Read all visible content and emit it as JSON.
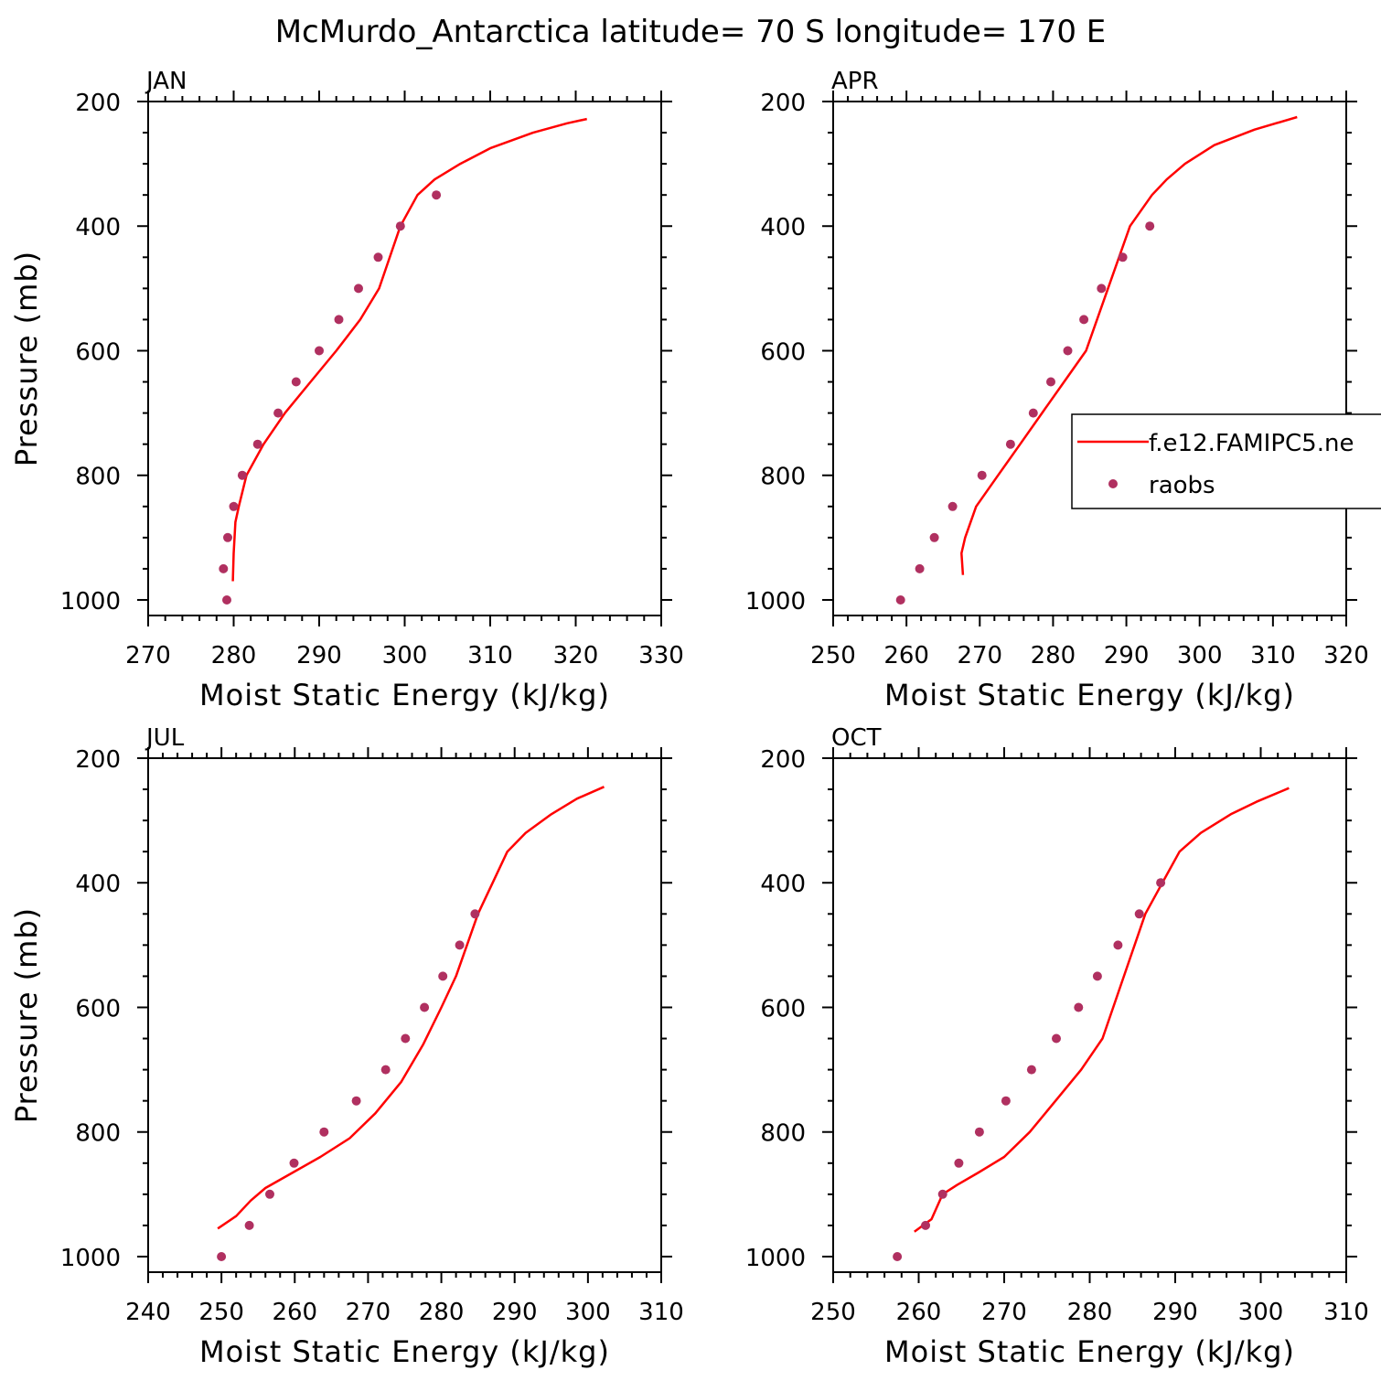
{
  "figure": {
    "title": "McMurdo_Antarctica  latitude= 70 S longitude= 170 E"
  },
  "legend": {
    "model_label": "f.e12.FAMIPC5.ne",
    "obs_label": "raobs"
  },
  "colors": {
    "model_line": "#ff0000",
    "obs_marker": "#b03060",
    "axes": "#000000",
    "background": "#ffffff"
  },
  "chart_data": [
    {
      "type": "line",
      "panel": "JAN",
      "xlabel": "Moist Static Energy (kJ/kg)",
      "ylabel": "Pressure (mb)",
      "xlim": [
        270,
        330
      ],
      "ylim": [
        1025,
        200
      ],
      "xticks": [
        270,
        280,
        290,
        300,
        310,
        320,
        330
      ],
      "yticks": [
        200,
        400,
        600,
        800,
        1000
      ],
      "series": [
        {
          "kind": "line",
          "x": [
            279.9,
            280.0,
            280.2,
            280.6,
            281.5,
            283.5,
            286.0,
            289.0,
            292.0,
            294.8,
            297.0,
            299.5,
            301.5,
            303.5,
            306.5,
            310.0,
            315.0,
            319.0,
            321.3
          ],
          "y": [
            970,
            925,
            875,
            850,
            800,
            750,
            700,
            650,
            600,
            550,
            500,
            400,
            350,
            325,
            300,
            275,
            250,
            235,
            228
          ]
        },
        {
          "kind": "scatter",
          "x": [
            279.2,
            278.8,
            279.3,
            280.0,
            281.0,
            282.8,
            285.2,
            287.3,
            290.0,
            292.3,
            294.6,
            296.9,
            299.5,
            303.7
          ],
          "y": [
            1000,
            950,
            900,
            850,
            800,
            750,
            700,
            650,
            600,
            550,
            500,
            450,
            400,
            350
          ]
        }
      ]
    },
    {
      "type": "line",
      "panel": "APR",
      "xlabel": "Moist Static Energy (kJ/kg)",
      "ylabel": "",
      "xlim": [
        250,
        320
      ],
      "ylim": [
        1025,
        200
      ],
      "xticks": [
        250,
        260,
        270,
        280,
        290,
        300,
        310,
        320
      ],
      "yticks": [
        200,
        400,
        600,
        800,
        1000
      ],
      "series": [
        {
          "kind": "line",
          "x": [
            267.7,
            267.5,
            268.0,
            269.5,
            272.5,
            275.5,
            278.5,
            281.5,
            284.5,
            287.5,
            290.5,
            293.5,
            295.5,
            298.0,
            302.0,
            307.5,
            313.3
          ],
          "y": [
            960,
            925,
            900,
            850,
            800,
            750,
            700,
            650,
            600,
            500,
            400,
            350,
            325,
            300,
            270,
            245,
            225
          ]
        },
        {
          "kind": "scatter",
          "x": [
            259.2,
            261.8,
            263.8,
            266.3,
            270.3,
            274.2,
            277.3,
            279.7,
            282.0,
            284.2,
            286.6,
            289.5,
            293.2
          ],
          "y": [
            1000,
            950,
            900,
            850,
            800,
            750,
            700,
            650,
            600,
            550,
            500,
            450,
            400
          ]
        }
      ]
    },
    {
      "type": "line",
      "panel": "JUL",
      "xlabel": "Moist Static Energy (kJ/kg)",
      "ylabel": "Pressure (mb)",
      "xlim": [
        240,
        310
      ],
      "ylim": [
        1025,
        200
      ],
      "xticks": [
        240,
        250,
        260,
        270,
        280,
        290,
        300,
        310
      ],
      "yticks": [
        200,
        400,
        600,
        800,
        1000
      ],
      "series": [
        {
          "kind": "line",
          "x": [
            249.5,
            252.0,
            254.0,
            256.0,
            259.0,
            263.5,
            267.5,
            271.0,
            274.5,
            277.5,
            280.0,
            282.0,
            283.5,
            285.0,
            287.0,
            289.0,
            291.5,
            295.0,
            298.5,
            302.2
          ],
          "y": [
            955,
            935,
            910,
            890,
            870,
            840,
            810,
            770,
            720,
            660,
            600,
            550,
            500,
            450,
            400,
            350,
            320,
            290,
            265,
            246
          ]
        },
        {
          "kind": "scatter",
          "x": [
            250.0,
            253.8,
            256.6,
            259.9,
            264.0,
            268.4,
            272.4,
            275.1,
            277.7,
            280.2,
            282.5,
            284.6
          ],
          "y": [
            1000,
            950,
            900,
            850,
            800,
            750,
            700,
            650,
            600,
            550,
            500,
            450
          ]
        }
      ]
    },
    {
      "type": "line",
      "panel": "OCT",
      "xlabel": "Moist Static Energy (kJ/kg)",
      "ylabel": "",
      "xlim": [
        250,
        310
      ],
      "ylim": [
        1025,
        200
      ],
      "xticks": [
        250,
        260,
        270,
        280,
        290,
        300,
        310
      ],
      "yticks": [
        200,
        400,
        600,
        800,
        1000
      ],
      "series": [
        {
          "kind": "line",
          "x": [
            259.5,
            261.5,
            262.8,
            264.5,
            267.0,
            270.0,
            273.0,
            276.0,
            279.0,
            281.5,
            284.0,
            286.5,
            288.5,
            290.5,
            293.0,
            296.5,
            299.5,
            303.3
          ],
          "y": [
            960,
            940,
            900,
            885,
            865,
            840,
            800,
            750,
            700,
            650,
            550,
            450,
            400,
            350,
            320,
            290,
            270,
            248
          ]
        },
        {
          "kind": "scatter",
          "x": [
            257.5,
            260.8,
            262.8,
            264.7,
            267.1,
            270.2,
            273.2,
            276.1,
            278.7,
            280.9,
            283.3,
            285.8,
            288.3
          ],
          "y": [
            1000,
            950,
            900,
            850,
            800,
            750,
            700,
            650,
            600,
            550,
            500,
            450,
            400
          ]
        }
      ]
    }
  ]
}
